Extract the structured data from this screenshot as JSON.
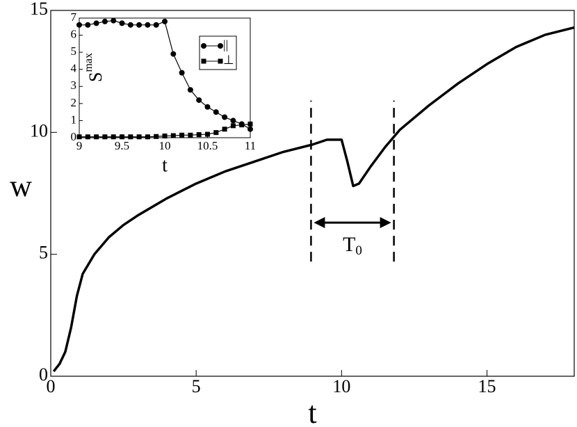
{
  "chart_data": [
    {
      "type": "line",
      "xlabel": "t",
      "ylabel": "w",
      "xlim": [
        0,
        18
      ],
      "xticks": [
        0,
        5,
        10,
        15
      ],
      "ylim": [
        0,
        15
      ],
      "yticks": [
        0,
        5,
        10,
        15
      ],
      "series": [
        {
          "color": "#000000",
          "x": [
            0.1,
            0.3,
            0.5,
            0.7,
            0.9,
            1.1,
            1.5,
            2,
            2.5,
            3,
            4,
            5,
            6,
            7,
            8,
            9,
            9.5,
            10,
            10.2,
            10.4,
            10.6,
            11,
            11.5,
            12,
            13,
            14,
            15,
            16,
            17,
            18
          ],
          "values": [
            0.2,
            0.5,
            1,
            2,
            3.3,
            4.2,
            5,
            5.7,
            6.2,
            6.6,
            7.3,
            7.9,
            8.4,
            8.8,
            9.2,
            9.5,
            9.7,
            9.7,
            8.8,
            7.8,
            7.9,
            8.6,
            9.4,
            10.1,
            11.1,
            12,
            12.8,
            13.5,
            14,
            14.3
          ]
        }
      ],
      "markers": {
        "x": [
          8.95,
          11.8
        ],
        "y": [
          4.7,
          11.3
        ]
      },
      "arrow": {
        "x": [
          8.95,
          11.8
        ],
        "y": 6.3,
        "text": "T",
        "subscript": "0"
      }
    },
    {
      "type": "line",
      "xlabel": "t",
      "ylabel": "S",
      "ylabel_superscript": "max",
      "xlim": [
        9,
        11
      ],
      "xticks": [
        9,
        9.5,
        10,
        {
          "value": 10.5,
          "label": "10.5"
        },
        11
      ],
      "ylim": [
        0,
        7
      ],
      "yticks": [
        0,
        1,
        2,
        3,
        4,
        5,
        6,
        7
      ],
      "x": [
        9,
        9.1,
        9.2,
        9.3,
        9.4,
        9.5,
        9.6,
        9.7,
        9.8,
        9.9,
        10,
        10.1,
        10.2,
        10.3,
        10.4,
        10.5,
        10.6,
        10.7,
        10.8,
        10.9,
        11
      ],
      "series": [
        {
          "name": "||",
          "marker": "circle",
          "color": "#000000",
          "values": [
            6.6,
            6.6,
            6.7,
            6.8,
            6.85,
            6.7,
            6.6,
            6.6,
            6.6,
            6.6,
            6.8,
            4.9,
            3.8,
            2.8,
            2.2,
            1.8,
            1.5,
            1.2,
            1.0,
            0.8,
            0.5
          ]
        },
        {
          "name": "⊥",
          "marker": "square",
          "color": "#000000",
          "values": [
            0.05,
            0.05,
            0.05,
            0.05,
            0.05,
            0.05,
            0.05,
            0.05,
            0.05,
            0.07,
            0.1,
            0.12,
            0.15,
            0.15,
            0.18,
            0.2,
            0.3,
            0.5,
            0.7,
            0.75,
            0.8
          ]
        }
      ]
    }
  ]
}
